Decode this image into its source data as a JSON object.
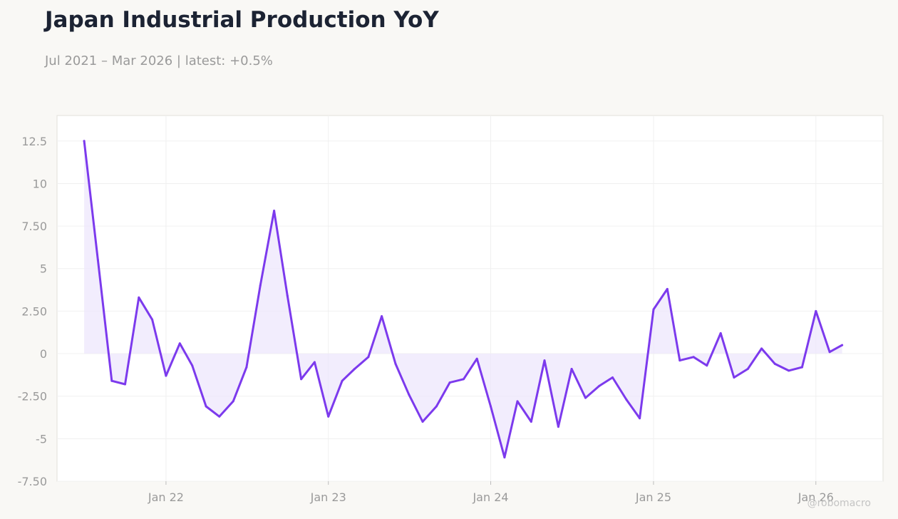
{
  "header": {
    "title": "Japan Industrial Production YoY",
    "subtitle": "Jul 2021 – Mar 2026 | latest: +0.5%"
  },
  "watermark": "@robomacro",
  "colors": {
    "background": "#f9f8f5",
    "plot_background": "#ffffff",
    "line": "#7c3aed",
    "fill": "#ede5fc",
    "grid": "#f0f0f0",
    "axis_text": "#9a9a9a"
  },
  "chart_data": {
    "type": "area",
    "title": "Japan Industrial Production YoY",
    "subtitle": "Jul 2021 – Mar 2026 | latest: +0.5%",
    "xlabel": "",
    "ylabel": "",
    "grid": true,
    "ylim": [
      -7.5,
      14
    ],
    "xlim": [
      "2021-05-01",
      "2026-06-01"
    ],
    "y_ticks": [
      12.5,
      10,
      7.5,
      5,
      2.5,
      0,
      -2.5,
      -5,
      -7.5
    ],
    "y_tick_labels": [
      "12.5",
      "10",
      "7.50",
      "5",
      "2.50",
      "0",
      "-2.50",
      "-5",
      "-7.50"
    ],
    "x_ticks": [
      "2022-01-01",
      "2023-01-01",
      "2024-01-01",
      "2025-01-01",
      "2026-01-01"
    ],
    "x_tick_labels": [
      "Jan 22",
      "Jan 23",
      "Jan 24",
      "Jan 25",
      "Jan 26"
    ],
    "series": [
      {
        "x": [
          "2021-07",
          "2021-08",
          "2021-09",
          "2021-10",
          "2021-11",
          "2021-12",
          "2022-01",
          "2022-02",
          "2022-03",
          "2022-04",
          "2022-05",
          "2022-06",
          "2022-07",
          "2022-08",
          "2022-09",
          "2022-10",
          "2022-11",
          "2022-12",
          "2023-01",
          "2023-02",
          "2023-03",
          "2023-04",
          "2023-05",
          "2023-06",
          "2023-07",
          "2023-08",
          "2023-09",
          "2023-10",
          "2023-11",
          "2023-12",
          "2024-01",
          "2024-02",
          "2024-03",
          "2024-04",
          "2024-05",
          "2024-06",
          "2024-07",
          "2024-08",
          "2024-09",
          "2024-10",
          "2024-11",
          "2024-12",
          "2025-01",
          "2025-02",
          "2025-03",
          "2025-04",
          "2025-05",
          "2025-06",
          "2025-07",
          "2025-08",
          "2025-09",
          "2025-10",
          "2025-11",
          "2025-12",
          "2026-01",
          "2026-02",
          "2026-03"
        ],
        "values": [
          12.5,
          5.5,
          -1.6,
          -1.8,
          3.3,
          2.0,
          -1.3,
          0.6,
          -0.7,
          -3.1,
          -3.7,
          -2.8,
          -0.8,
          4.0,
          8.4,
          3.4,
          -1.5,
          -0.5,
          -3.7,
          -1.6,
          -0.9,
          -0.2,
          2.2,
          -0.6,
          -2.4,
          -4.0,
          -3.1,
          -1.7,
          -1.5,
          -0.3,
          -3.1,
          -6.1,
          -2.8,
          -4.0,
          -0.4,
          -4.3,
          -0.9,
          -2.6,
          -1.9,
          -1.4,
          -2.7,
          -3.8,
          2.6,
          3.8,
          -0.4,
          -0.2,
          -0.7,
          1.2,
          -1.4,
          -0.9,
          0.3,
          -0.6,
          -1.0,
          -0.8,
          2.5,
          0.1,
          0.5
        ]
      }
    ]
  }
}
